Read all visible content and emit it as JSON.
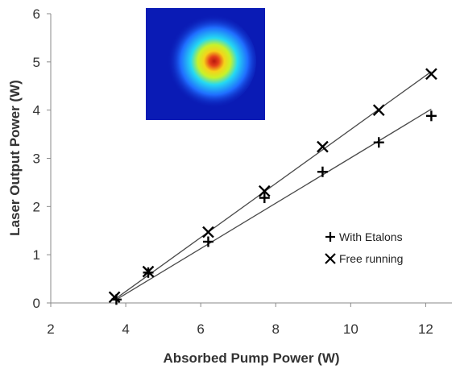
{
  "chart_data": {
    "type": "scatter",
    "xlabel": "Absorbed Pump Power (W)",
    "ylabel": "Laser Output Power (W)",
    "xlim": [
      2,
      12.7
    ],
    "ylim": [
      0,
      6
    ],
    "xticks": [
      2,
      4,
      6,
      8,
      10,
      12
    ],
    "yticks": [
      0,
      1,
      2,
      3,
      4,
      5,
      6
    ],
    "grid": false,
    "legend_position": "lower-right",
    "series": [
      {
        "name": "With Etalons",
        "marker": "plus",
        "color": "#000000",
        "x": [
          3.75,
          4.6,
          6.2,
          7.7,
          9.25,
          10.75,
          12.15
        ],
        "y": [
          0.07,
          0.63,
          1.27,
          2.18,
          2.72,
          3.33,
          3.88
        ],
        "fit": {
          "x": [
            3.75,
            12.15
          ],
          "y": [
            0.07,
            4.02
          ]
        }
      },
      {
        "name": "Free running",
        "marker": "cross",
        "color": "#000000",
        "x": [
          3.7,
          4.6,
          6.2,
          7.7,
          9.25,
          10.75,
          12.15
        ],
        "y": [
          0.12,
          0.65,
          1.47,
          2.32,
          3.24,
          4.0,
          4.75
        ],
        "fit": {
          "x": [
            3.7,
            12.15
          ],
          "y": [
            0.07,
            4.8
          ]
        }
      }
    ],
    "inset": {
      "kind": "beam-profile-image",
      "colormap": [
        "#0a1bb5",
        "#1f6dff",
        "#25d9f2",
        "#c8f22a",
        "#f6d21a",
        "#e5401a",
        "#b8180e"
      ]
    }
  }
}
